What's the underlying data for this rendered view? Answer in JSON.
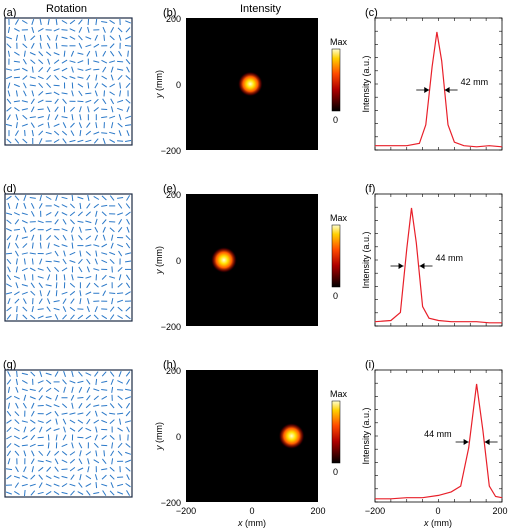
{
  "headers": {
    "rotation": "Rotation",
    "intensity": "Intensity"
  },
  "colorbar": {
    "max_label": "Max",
    "min_label": "0"
  },
  "units": {
    "xlabel_var": "x",
    "xlabel_unit": " (mm)",
    "ylabel_var": "y",
    "ylabel_unit": " (mm)",
    "profile_ylabel": "Intensity (a.u.)"
  },
  "axis_ticks": {
    "y_top": "200",
    "y_mid": "0",
    "y_bottom": "−200",
    "x_left": "−200",
    "x_mid": "0",
    "x_right": "200"
  },
  "colors": {
    "line": "#e8202a",
    "dash": "#2a78c8",
    "frame": "#1c2a44"
  },
  "rows": [
    {
      "labels": [
        "(a)",
        "(b)",
        "(c)"
      ],
      "fwhm_label": "42 mm",
      "fwhm_mm": 42,
      "spot_x_mm": -5,
      "spot_y_mm": 0
    },
    {
      "labels": [
        "(d)",
        "(e)",
        "(f)"
      ],
      "fwhm_label": "44 mm",
      "fwhm_mm": 44,
      "spot_x_mm": -85,
      "spot_y_mm": 0
    },
    {
      "labels": [
        "(g)",
        "(h)",
        "(i)"
      ],
      "fwhm_label": "44 mm",
      "fwhm_mm": 44,
      "spot_x_mm": 120,
      "spot_y_mm": 0
    }
  ],
  "chart_data": [
    {
      "type": "line",
      "panel": "(c)",
      "x": [
        -200,
        -150,
        -100,
        -60,
        -40,
        -20,
        -5,
        10,
        30,
        50,
        80,
        120,
        160,
        200
      ],
      "y": [
        0.02,
        0.02,
        0.02,
        0.04,
        0.2,
        0.7,
        1.0,
        0.75,
        0.2,
        0.05,
        0.02,
        0.01,
        0.02,
        0.01
      ],
      "xlim": [
        -200,
        200
      ],
      "ylabel": "Intensity (a.u.)"
    },
    {
      "type": "line",
      "panel": "(f)",
      "x": [
        -200,
        -150,
        -120,
        -100,
        -85,
        -70,
        -50,
        -30,
        0,
        40,
        80,
        120,
        160,
        200
      ],
      "y": [
        0.02,
        0.03,
        0.1,
        0.65,
        1.0,
        0.7,
        0.15,
        0.05,
        0.03,
        0.02,
        0.02,
        0.02,
        0.01,
        0.01
      ],
      "xlim": [
        -200,
        200
      ],
      "ylabel": "Intensity (a.u.)"
    },
    {
      "type": "line",
      "panel": "(i)",
      "x": [
        -200,
        -150,
        -100,
        -50,
        0,
        40,
        70,
        95,
        120,
        140,
        160,
        180,
        200
      ],
      "y": [
        0.01,
        0.01,
        0.02,
        0.02,
        0.04,
        0.07,
        0.12,
        0.45,
        1.0,
        0.6,
        0.12,
        0.03,
        0.02
      ],
      "xlim": [
        -200,
        200
      ],
      "xlabel": "x (mm)",
      "ylabel": "Intensity (a.u.)"
    }
  ]
}
